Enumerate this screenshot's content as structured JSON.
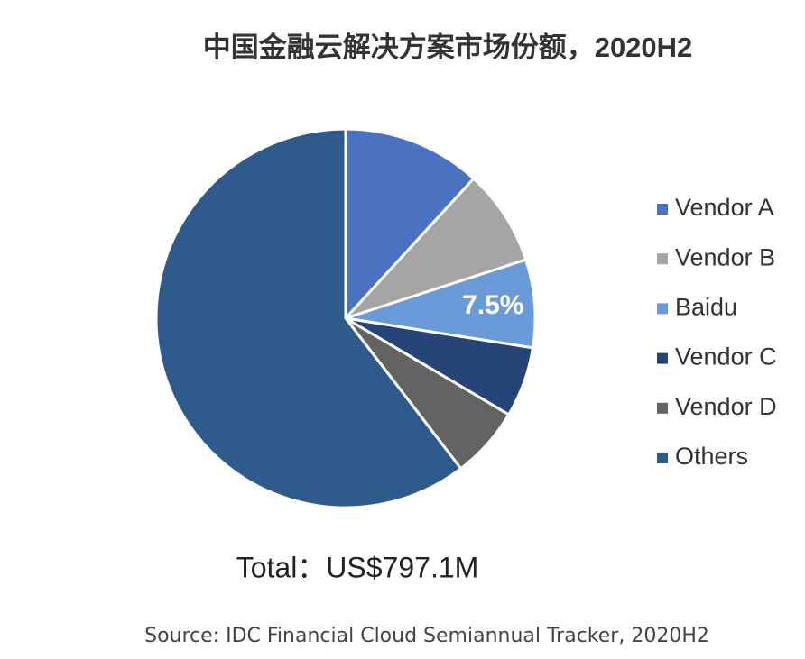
{
  "chart_data": {
    "type": "pie",
    "title": "中国金融云解决方案市场份额，2020H2",
    "categories": [
      "Vendor A",
      "Vendor B",
      "Baidu",
      "Vendor C",
      "Vendor D",
      "Others"
    ],
    "values": [
      11.8,
      8.2,
      7.5,
      6.0,
      6.1,
      60.4
    ],
    "value_labels": [
      null,
      null,
      "7.5%",
      null,
      null,
      null
    ],
    "colors": [
      "#4a72c0",
      "#a5a5a5",
      "#6a9bd8",
      "#264478",
      "#636363",
      "#2f5a8c"
    ],
    "legend": "right",
    "total": "Total：US$797.1M",
    "source": "Source: IDC Financial Cloud Semiannual Tracker, 2020H2"
  }
}
